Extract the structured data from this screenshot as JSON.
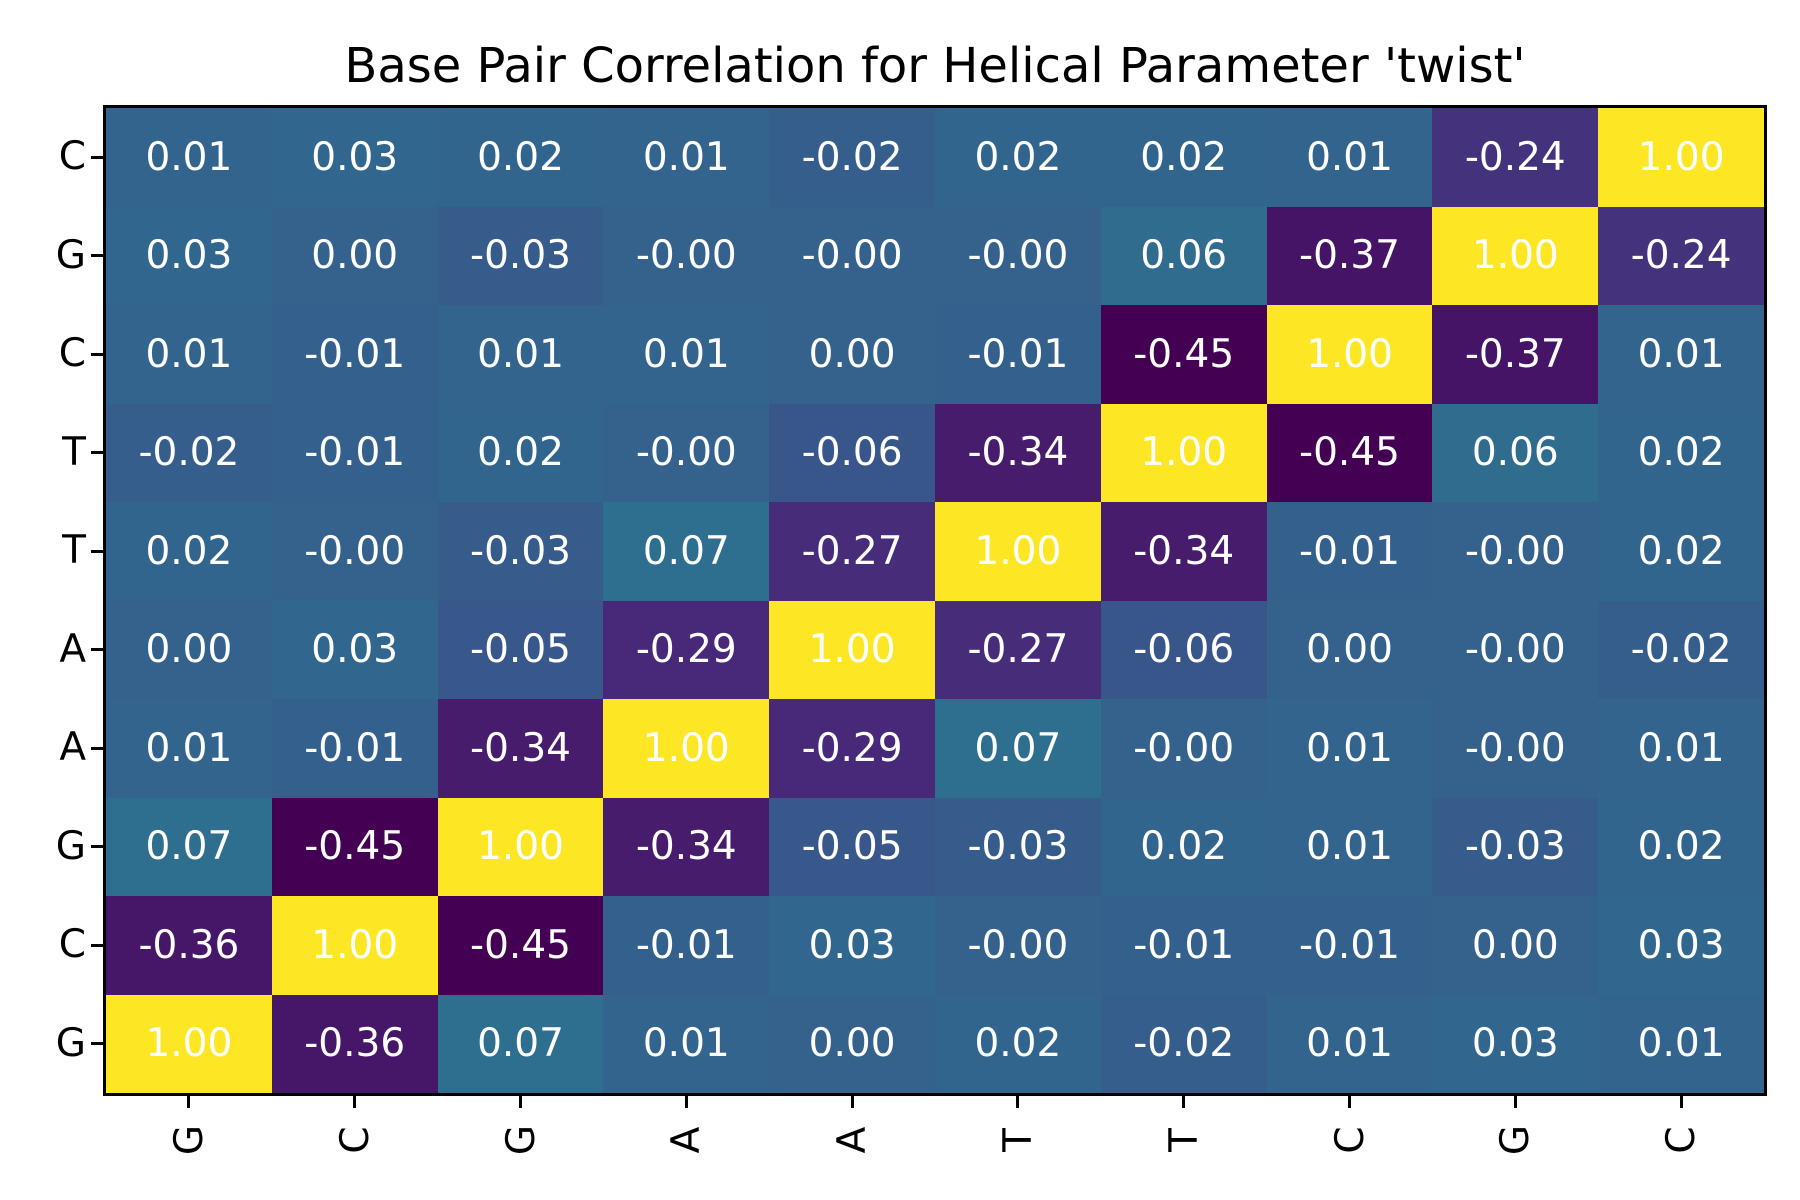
{
  "chart_data": {
    "type": "heatmap",
    "title": "Base Pair Correlation for Helical Parameter 'twist'",
    "x_labels": [
      "G",
      "C",
      "G",
      "A",
      "A",
      "T",
      "T",
      "C",
      "G",
      "C"
    ],
    "y_labels": [
      "C",
      "G",
      "C",
      "T",
      "T",
      "A",
      "A",
      "G",
      "C",
      "G"
    ],
    "values": [
      [
        "0.01",
        "0.03",
        "0.02",
        "0.01",
        "-0.02",
        "0.02",
        "0.02",
        "0.01",
        "-0.24",
        "1.00"
      ],
      [
        "0.03",
        "0.00",
        "-0.03",
        "-0.00",
        "-0.00",
        "-0.00",
        "0.06",
        "-0.37",
        "1.00",
        "-0.24"
      ],
      [
        "0.01",
        "-0.01",
        "0.01",
        "0.01",
        "0.00",
        "-0.01",
        "-0.45",
        "1.00",
        "-0.37",
        "0.01"
      ],
      [
        "-0.02",
        "-0.01",
        "0.02",
        "-0.00",
        "-0.06",
        "-0.34",
        "1.00",
        "-0.45",
        "0.06",
        "0.02"
      ],
      [
        "0.02",
        "-0.00",
        "-0.03",
        "0.07",
        "-0.27",
        "1.00",
        "-0.34",
        "-0.01",
        "-0.00",
        "0.02"
      ],
      [
        "0.00",
        "0.03",
        "-0.05",
        "-0.29",
        "1.00",
        "-0.27",
        "-0.06",
        "0.00",
        "-0.00",
        "-0.02"
      ],
      [
        "0.01",
        "-0.01",
        "-0.34",
        "1.00",
        "-0.29",
        "0.07",
        "-0.00",
        "0.01",
        "-0.00",
        "0.01"
      ],
      [
        "0.07",
        "-0.45",
        "1.00",
        "-0.34",
        "-0.05",
        "-0.03",
        "0.02",
        "0.01",
        "-0.03",
        "0.02"
      ],
      [
        "-0.36",
        "1.00",
        "-0.45",
        "-0.01",
        "0.03",
        "-0.00",
        "-0.01",
        "-0.01",
        "0.00",
        "0.03"
      ],
      [
        "1.00",
        "-0.36",
        "0.07",
        "0.01",
        "0.00",
        "0.02",
        "-0.02",
        "0.01",
        "0.03",
        "0.01"
      ]
    ],
    "colormap": "viridis",
    "color_scale": {
      "vmin": -0.45,
      "vmax": 1.0
    },
    "cell_text_color": "#ffffff",
    "colors": {
      "min_color": "#440154",
      "max_color": "#fde725",
      "near_zero_color": "#34628d",
      "frame_color": "#000000",
      "background": "#ffffff"
    },
    "layout": {
      "grid": false,
      "legend": "none",
      "x_tick_rotation": 90
    }
  }
}
